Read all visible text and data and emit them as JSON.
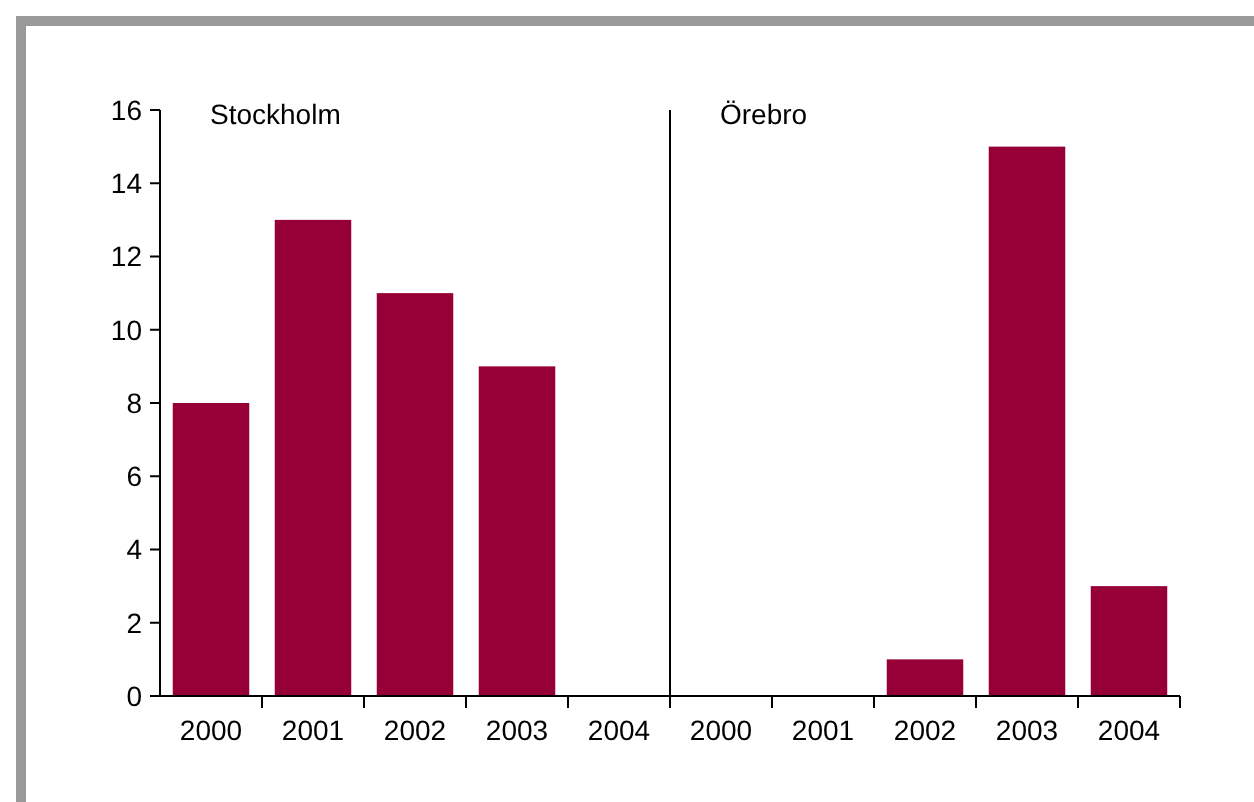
{
  "chart_data": [
    {
      "type": "bar",
      "title": "Stockholm",
      "categories": [
        "2000",
        "2001",
        "2002",
        "2003",
        "2004"
      ],
      "values": [
        8,
        13,
        11,
        9,
        0
      ],
      "color": "#960036",
      "ylim": [
        0,
        16
      ],
      "yticks": [
        0,
        2,
        4,
        6,
        8,
        10,
        12,
        14,
        16
      ],
      "grid": false
    },
    {
      "type": "bar",
      "title": "Örebro",
      "categories": [
        "2000",
        "2001",
        "2002",
        "2003",
        "2004"
      ],
      "values": [
        0,
        0,
        1,
        15,
        3
      ],
      "color": "#960036",
      "ylim": [
        0,
        16
      ],
      "yticks": [
        0,
        2,
        4,
        6,
        8,
        10,
        12,
        14,
        16
      ],
      "grid": false,
      "tick_labels": "x"
    }
  ]
}
